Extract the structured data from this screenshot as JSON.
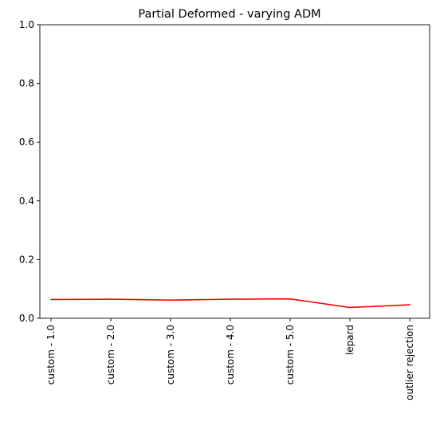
{
  "chart_data": {
    "type": "line",
    "title": "Partial Deformed - varying ADM",
    "xlabel": "",
    "ylabel": "",
    "categories": [
      "custom - 1.0",
      "custom - 2.0",
      "custom - 3.0",
      "custom - 4.0",
      "custom - 5.0",
      "lepard",
      "outlier rejection"
    ],
    "series": [
      {
        "values": [
          0.064,
          0.065,
          0.062,
          0.065,
          0.066,
          0.037,
          0.046
        ],
        "color": "#ff0000"
      }
    ],
    "yticks": [
      "0.0",
      "0.2",
      "0.4",
      "0.6",
      "0.8",
      "1.0"
    ],
    "ylim": [
      0,
      1
    ],
    "grid": false,
    "legend": "none"
  }
}
